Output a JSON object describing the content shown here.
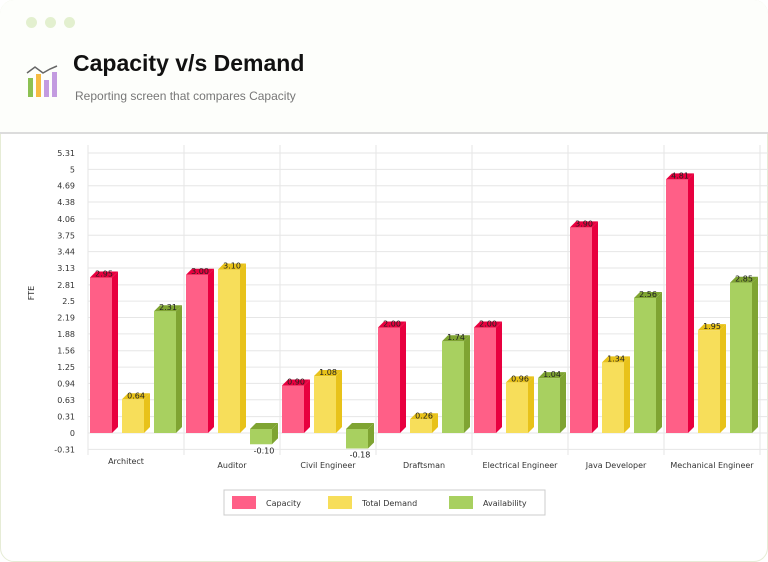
{
  "header": {
    "title": "Capacity v/s Demand",
    "subtitle": "Reporting screen that compares Capacity",
    "icon": "bar-chart-trend-icon"
  },
  "chart_data": {
    "type": "bar",
    "style": "3d-grouped",
    "ylabel": "FTE",
    "xlabel": "",
    "ylim": [
      -0.31,
      5.31
    ],
    "yticks": [
      "-0.31",
      "0",
      "0.31",
      "0.63",
      "0.94",
      "1.25",
      "1.56",
      "1.88",
      "2.19",
      "2.5",
      "2.81",
      "3.13",
      "3.44",
      "3.75",
      "4.06",
      "4.38",
      "4.69",
      "5",
      "5.31"
    ],
    "categories": [
      "Architect",
      "Auditor",
      "Civil Engineer",
      "Draftsman",
      "Electrical Engineer",
      "Java Developer",
      "Mechanical Engineer"
    ],
    "series": [
      {
        "name": "Capacity",
        "color": "#ff5f87",
        "side": "#e8003f",
        "values": [
          2.95,
          3.0,
          0.9,
          2.0,
          2.0,
          3.9,
          4.81
        ]
      },
      {
        "name": "Total Demand",
        "color": "#f7de5a",
        "side": "#e8c21a",
        "values": [
          0.64,
          3.1,
          1.08,
          0.26,
          0.96,
          1.34,
          1.95
        ]
      },
      {
        "name": "Availability",
        "color": "#a8d060",
        "side": "#7fa432",
        "values": [
          2.31,
          -0.1,
          -0.18,
          1.74,
          1.04,
          2.56,
          2.85
        ]
      }
    ],
    "grid": true,
    "legend": "bottom"
  }
}
